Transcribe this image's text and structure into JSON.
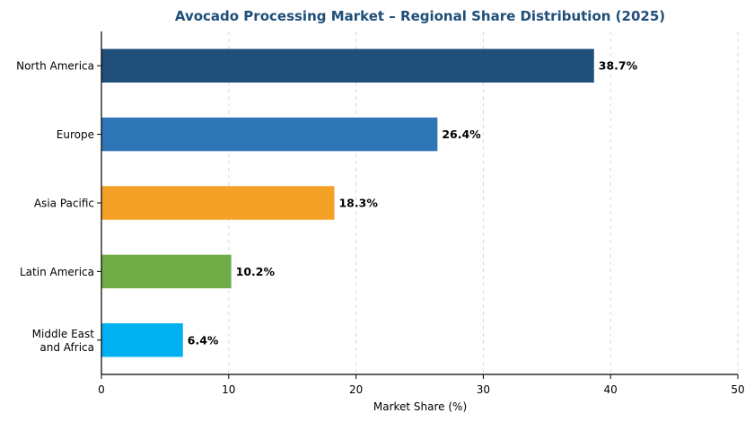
{
  "chart_data": {
    "type": "bar",
    "orientation": "horizontal",
    "title": "Avocado Processing Market – Regional Share Distribution (2025)",
    "title_color": "#1f4e79",
    "xlabel": "Market Share (%)",
    "ylabel": "",
    "xlim": [
      0,
      50
    ],
    "xticks": [
      0,
      10,
      20,
      30,
      40,
      50
    ],
    "grid": "x-dashed",
    "categories": [
      [
        "North America"
      ],
      [
        "Europe"
      ],
      [
        "Asia Pacific"
      ],
      [
        "Latin America"
      ],
      [
        "Middle East",
        "and Africa"
      ]
    ],
    "values": [
      38.7,
      26.4,
      18.3,
      10.2,
      6.4
    ],
    "value_labels": [
      "38.7%",
      "26.4%",
      "18.3%",
      "10.2%",
      "6.4%"
    ],
    "colors": [
      "#1f4e79",
      "#2e75b6",
      "#f5a128",
      "#70ad47",
      "#00b0f0"
    ]
  }
}
